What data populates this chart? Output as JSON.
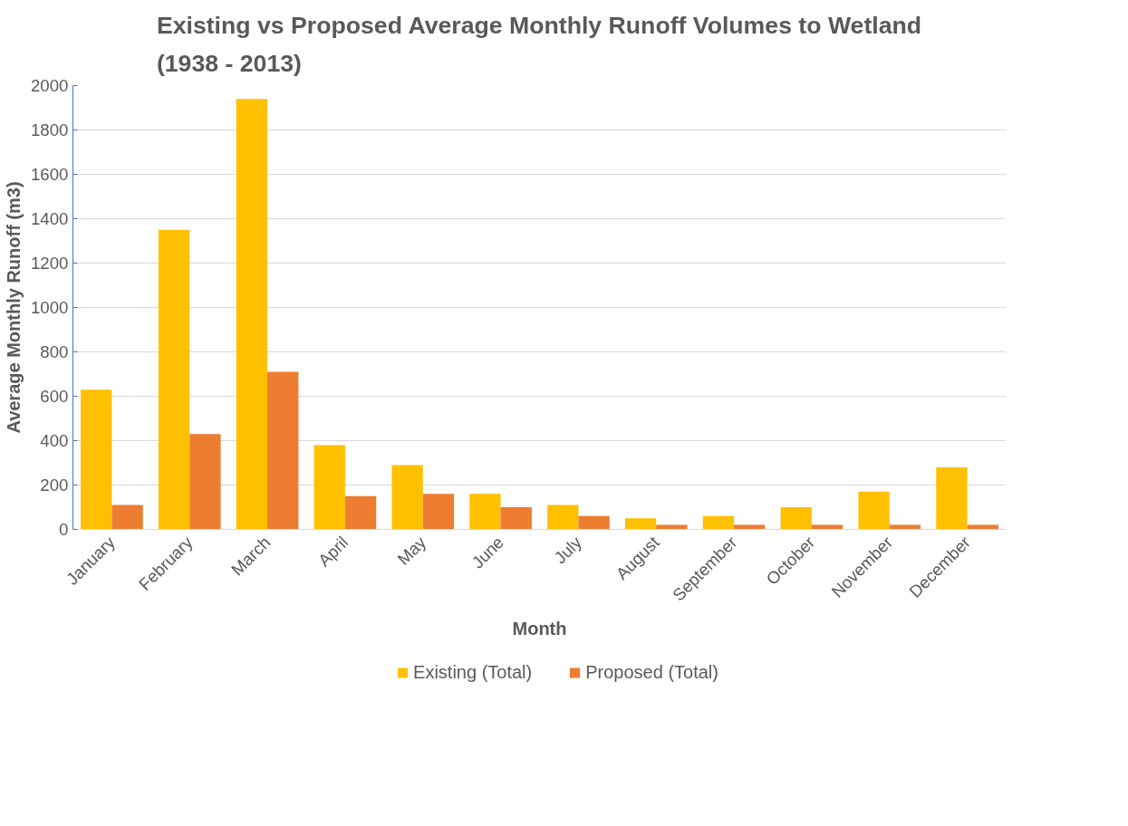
{
  "chart_data": {
    "type": "bar",
    "title": "Existing vs Proposed Average Monthly Runoff Volumes to Wetland\n(1938 - 2013)",
    "xlabel": "Month",
    "ylabel": "Average Monthly Runoff (m3)",
    "categories": [
      "January",
      "February",
      "March",
      "April",
      "May",
      "June",
      "July",
      "August",
      "September",
      "October",
      "November",
      "December"
    ],
    "series": [
      {
        "name": "Existing (Total)",
        "color": "#ffc000",
        "values": [
          630,
          1350,
          1940,
          380,
          290,
          160,
          110,
          50,
          60,
          100,
          170,
          280
        ]
      },
      {
        "name": "Proposed (Total)",
        "color": "#ed7d31",
        "values": [
          110,
          430,
          710,
          150,
          160,
          100,
          60,
          20,
          20,
          20,
          20,
          20
        ]
      }
    ],
    "ylim": [
      0,
      2000
    ],
    "yticks": [
      0,
      200,
      400,
      600,
      800,
      1000,
      1200,
      1400,
      1600,
      1800,
      2000
    ],
    "grid": "y",
    "legend": "bottom"
  }
}
